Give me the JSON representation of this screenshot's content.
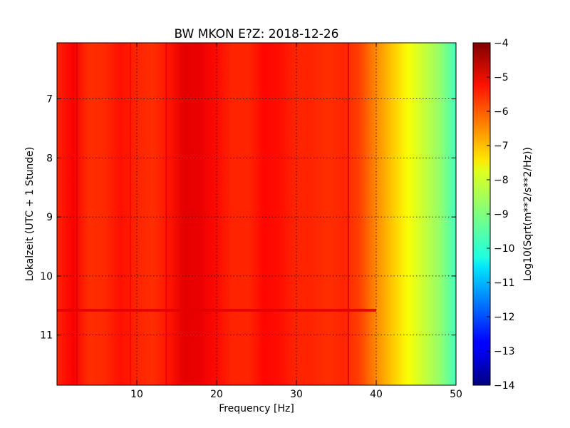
{
  "chart_data": {
    "type": "heatmap",
    "title": "BW MKON E?Z: 2018-12-26",
    "xlabel": "Frequency [Hz]",
    "ylabel": "Lokalzeit (UTC + 1 Stunde)",
    "xlim": [
      0,
      50
    ],
    "ylim": [
      11.85,
      6.05
    ],
    "y_inverted": true,
    "grid": true,
    "x_ticks": [
      10,
      20,
      30,
      40,
      50
    ],
    "x_tick_labels": [
      "10",
      "20",
      "30",
      "40",
      "50"
    ],
    "y_ticks": [
      7,
      8,
      9,
      10,
      11
    ],
    "y_tick_labels": [
      "7",
      "8",
      "9",
      "10",
      "11"
    ],
    "colormap": "jet",
    "colorbar": {
      "label": "Log10(Sqrt(m**2/s**2/Hz))",
      "range": [
        -14,
        -4
      ],
      "ticks": [
        -4,
        -5,
        -6,
        -7,
        -8,
        -9,
        -10,
        -11,
        -12,
        -13,
        -14
      ],
      "tick_labels": [
        "−4",
        "−5",
        "−6",
        "−7",
        "−8",
        "−9",
        "−10",
        "−11",
        "−12",
        "−13",
        "−14"
      ]
    },
    "spectral_profile": {
      "frequency_hz": [
        0,
        2,
        4,
        6,
        8,
        10,
        12,
        14,
        16,
        18,
        20,
        22,
        24,
        26,
        28,
        30,
        32,
        34,
        36,
        38,
        40,
        42,
        44,
        46,
        48,
        50
      ],
      "log10_value": [
        -5.6,
        -5.2,
        -5.7,
        -5.65,
        -5.4,
        -5.6,
        -5.7,
        -5.45,
        -5.0,
        -5.05,
        -5.35,
        -5.6,
        -5.6,
        -5.3,
        -5.4,
        -5.6,
        -5.6,
        -5.7,
        -5.6,
        -5.9,
        -6.6,
        -7.2,
        -7.8,
        -8.3,
        -8.8,
        -9.6
      ]
    },
    "lines": [
      {
        "frequency_hz": 2.5,
        "log10_value": -4.9
      },
      {
        "frequency_hz": 9.2,
        "log10_value": -5.2
      },
      {
        "frequency_hz": 13.7,
        "log10_value": -5.0
      },
      {
        "frequency_hz": 36.5,
        "log10_value": -4.8
      }
    ],
    "events": [
      {
        "time": 10.58,
        "log10_value": -5.0
      }
    ]
  }
}
